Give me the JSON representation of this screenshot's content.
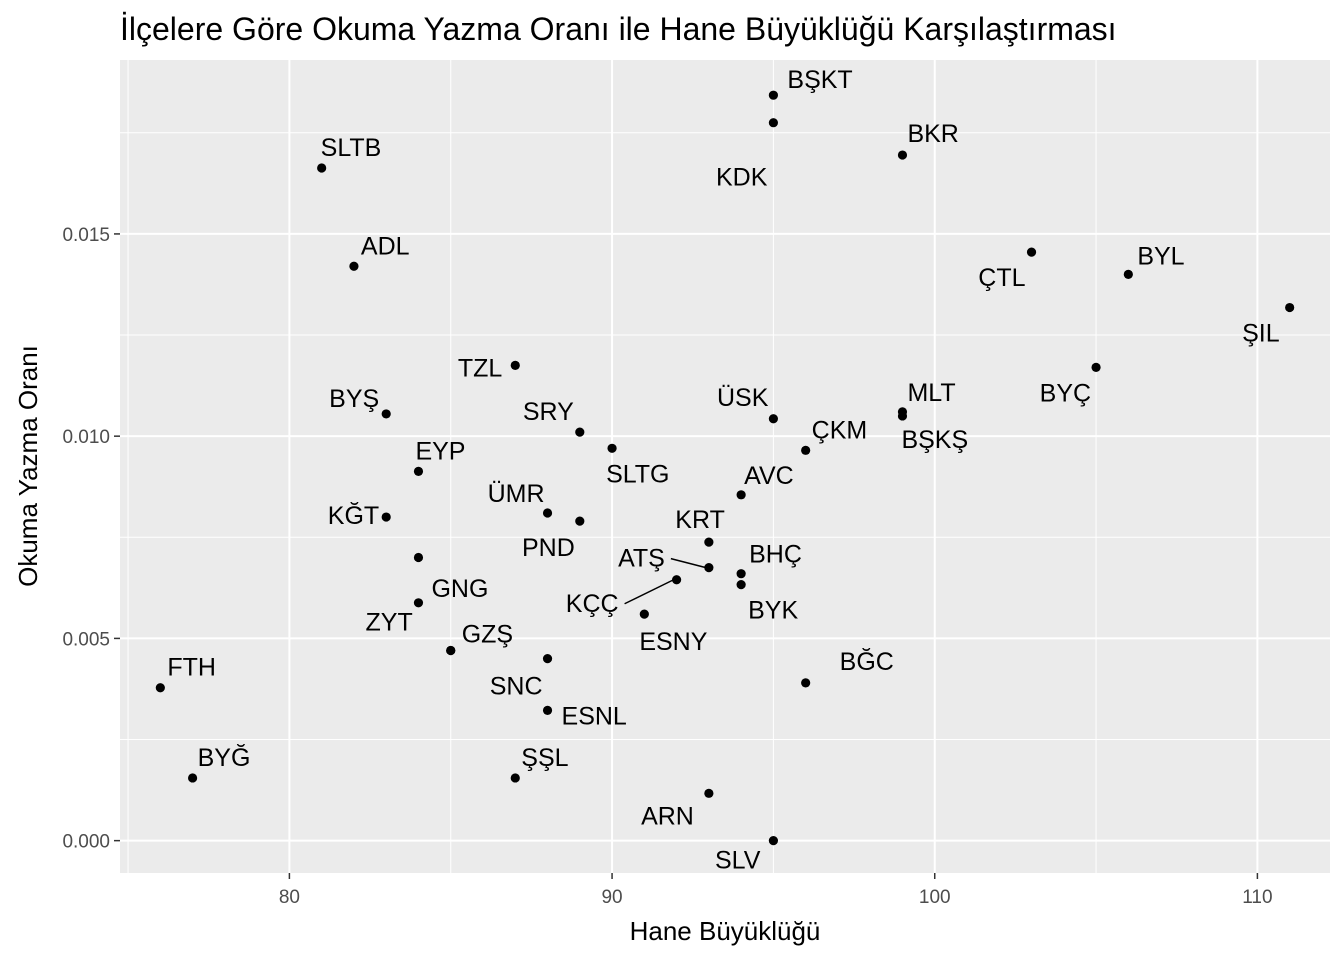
{
  "chart_data": {
    "type": "scatter",
    "title": "İlçelere Göre Okuma Yazma Oranı ile Hane Büyüklüğü Karşılaştırması",
    "xlabel": "Hane Büyüklüğü",
    "ylabel": "Okuma Yazma Oranı",
    "xlim": [
      74.75,
      112.25
    ],
    "ylim": [
      -0.0008,
      0.0193
    ],
    "x_ticks": [
      80,
      90,
      100,
      110
    ],
    "x_tick_labels": [
      "80",
      "90",
      "100",
      "110"
    ],
    "y_ticks": [
      0.0,
      0.005,
      0.01,
      0.015
    ],
    "y_tick_labels": [
      "0.000",
      "0.005",
      "0.010",
      "0.015"
    ],
    "grid": true,
    "legend": "none",
    "colors": {
      "panel": "#ebebeb",
      "grid": "#ffffff",
      "point": "#000000",
      "tick_text": "#4d4d4d"
    },
    "points": [
      {
        "label": "BŞKT",
        "x": 95,
        "y": 0.01843
      },
      {
        "label": "KDK",
        "x": 95,
        "y": 0.01775
      },
      {
        "label": "BKR",
        "x": 99,
        "y": 0.01695
      },
      {
        "label": "SLTB",
        "x": 81,
        "y": 0.01663
      },
      {
        "label": "ADL",
        "x": 82,
        "y": 0.0142
      },
      {
        "label": "ÇTL",
        "x": 103,
        "y": 0.01455
      },
      {
        "label": "BYL",
        "x": 106,
        "y": 0.014
      },
      {
        "label": "ŞIL",
        "x": 111,
        "y": 0.01318
      },
      {
        "label": "TZL",
        "x": 87,
        "y": 0.01175
      },
      {
        "label": "BYÇ",
        "x": 105,
        "y": 0.0117
      },
      {
        "label": "BYŞ",
        "x": 83,
        "y": 0.01055
      },
      {
        "label": "MLT",
        "x": 99,
        "y": 0.0106
      },
      {
        "label": "BŞKŞ",
        "x": 99,
        "y": 0.0105
      },
      {
        "label": "ÜSK",
        "x": 95,
        "y": 0.01043
      },
      {
        "label": "SRY",
        "x": 89,
        "y": 0.0101
      },
      {
        "label": "SLTG",
        "x": 90,
        "y": 0.0097
      },
      {
        "label": "ÇKM",
        "x": 96,
        "y": 0.00965
      },
      {
        "label": "EYP",
        "x": 84,
        "y": 0.00913
      },
      {
        "label": "AVC",
        "x": 94,
        "y": 0.00855
      },
      {
        "label": "ÜMR",
        "x": 88,
        "y": 0.0081
      },
      {
        "label": "KĞT",
        "x": 83,
        "y": 0.008
      },
      {
        "label": "PND",
        "x": 89,
        "y": 0.0079
      },
      {
        "label": "KRT",
        "x": 93,
        "y": 0.00738
      },
      {
        "label": "",
        "x": 84,
        "y": 0.007
      },
      {
        "label": "ATŞ",
        "x": 93,
        "y": 0.00675
      },
      {
        "label": "BHÇ",
        "x": 94,
        "y": 0.0066
      },
      {
        "label": "KÇÇ",
        "x": 92,
        "y": 0.00645
      },
      {
        "label": "BYK",
        "x": 94,
        "y": 0.00633
      },
      {
        "label": "GNG",
        "x": 84,
        "y": 0.00588
      },
      {
        "label": "ESNY",
        "x": 91,
        "y": 0.0056
      },
      {
        "label": "ZYT",
        "x": 85,
        "y": 0.0047
      },
      {
        "label": "GZŞ",
        "x": 85,
        "y": 0.0047
      },
      {
        "label": "SNC",
        "x": 88,
        "y": 0.0045
      },
      {
        "label": "BĞC",
        "x": 96,
        "y": 0.0039
      },
      {
        "label": "FTH",
        "x": 76,
        "y": 0.00378
      },
      {
        "label": "ESNL",
        "x": 88,
        "y": 0.00322
      },
      {
        "label": "BYĞ",
        "x": 77,
        "y": 0.00155
      },
      {
        "label": "ŞŞL",
        "x": 87,
        "y": 0.00155
      },
      {
        "label": "ARN",
        "x": 93,
        "y": 0.00117
      },
      {
        "label": "SLV",
        "x": 95,
        "y": 0.0
      }
    ]
  }
}
